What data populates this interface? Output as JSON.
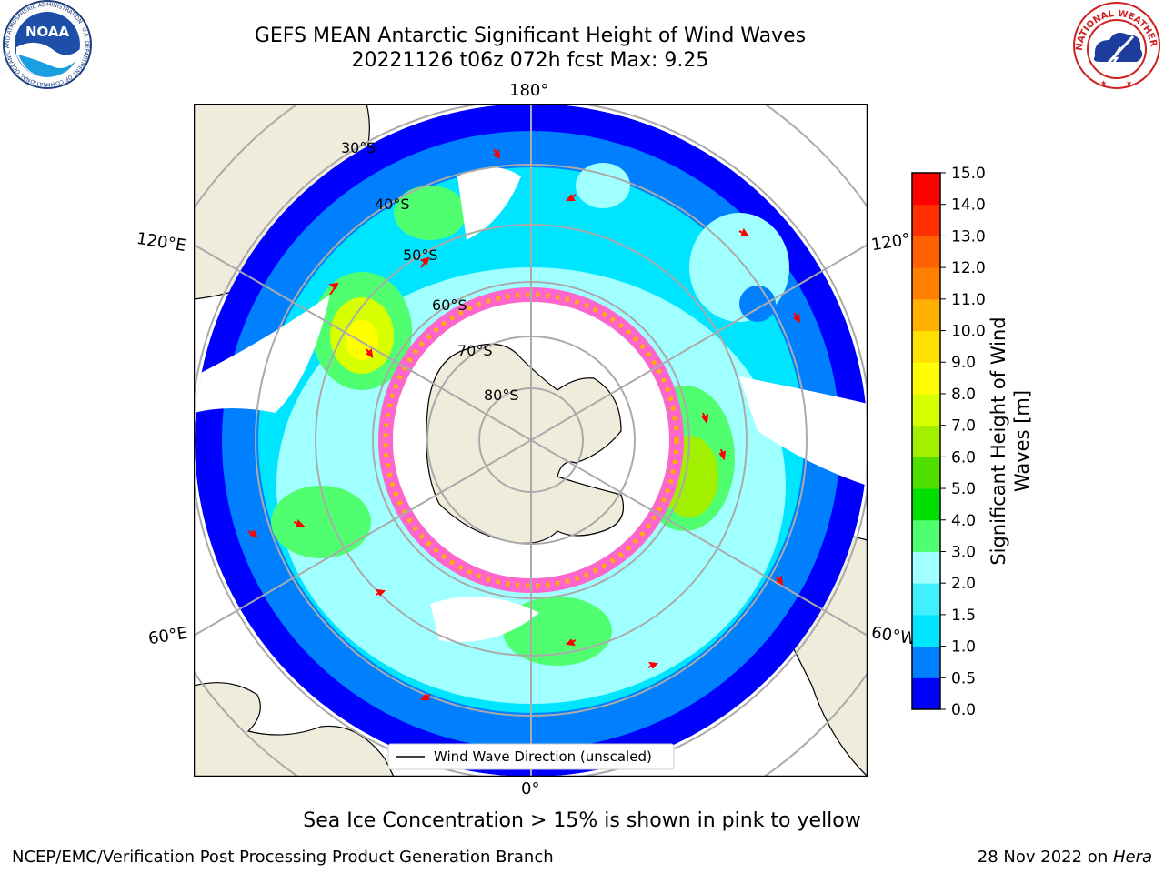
{
  "header": {
    "title_line1": "GEFS MEAN Antarctic Significant Height of Wind Waves",
    "title_line2": "20221126 t06z 072h fcst   Max: 9.25"
  },
  "map": {
    "projection": "south-polar stereographic",
    "lat_labels": [
      "30°S",
      "40°S",
      "50°S",
      "60°S",
      "70°S",
      "80°S"
    ],
    "lon_labels": {
      "top": "180°",
      "bottom": "0°",
      "left_upper": "120°E",
      "left_lower": "60°E",
      "right_upper": "120°",
      "right_lower": "60°W"
    },
    "legend": "Wind Wave Direction (unscaled)",
    "colors": {
      "land": "#efecdc",
      "ocean_low": "#0000ff",
      "ocean_mid": "#00e5ff",
      "ocean_high": "#00ff00",
      "ice": "#ff66cc",
      "arrow": "#ff0000"
    }
  },
  "colorbar": {
    "label_line1": "Significant Height of Wind",
    "label_line2": "Waves [m]",
    "ticks": [
      "0.0",
      "0.5",
      "1.0",
      "1.5",
      "2.0",
      "3.0",
      "4.0",
      "5.0",
      "6.0",
      "7.0",
      "8.0",
      "9.0",
      "10.0",
      "11.0",
      "12.0",
      "13.0",
      "14.0",
      "15.0"
    ],
    "colors": [
      "#0000ff",
      "#0080ff",
      "#00e5ff",
      "#40f0ff",
      "#a0ffff",
      "#50ff70",
      "#00e000",
      "#50e000",
      "#a0f000",
      "#d8ff00",
      "#ffff00",
      "#ffe000",
      "#ffb000",
      "#ff8000",
      "#ff6000",
      "#ff3000",
      "#ff0000"
    ]
  },
  "caption": "Sea Ice Concentration > 15% is shown in pink to yellow",
  "footer": {
    "left": "NCEP/EMC/Verification Post Processing Product Generation Branch",
    "right_prefix": "28 Nov 2022 on ",
    "right_italic": "Hera"
  },
  "logos": {
    "noaa_text": "NOAA",
    "noaa_ring": "NATIONAL OCEANIC AND ATMOSPHERIC ADMINISTRATION · U.S. DEPARTMENT OF COMMERCE",
    "nws_ring": "NATIONAL WEATHER SERVICE"
  }
}
